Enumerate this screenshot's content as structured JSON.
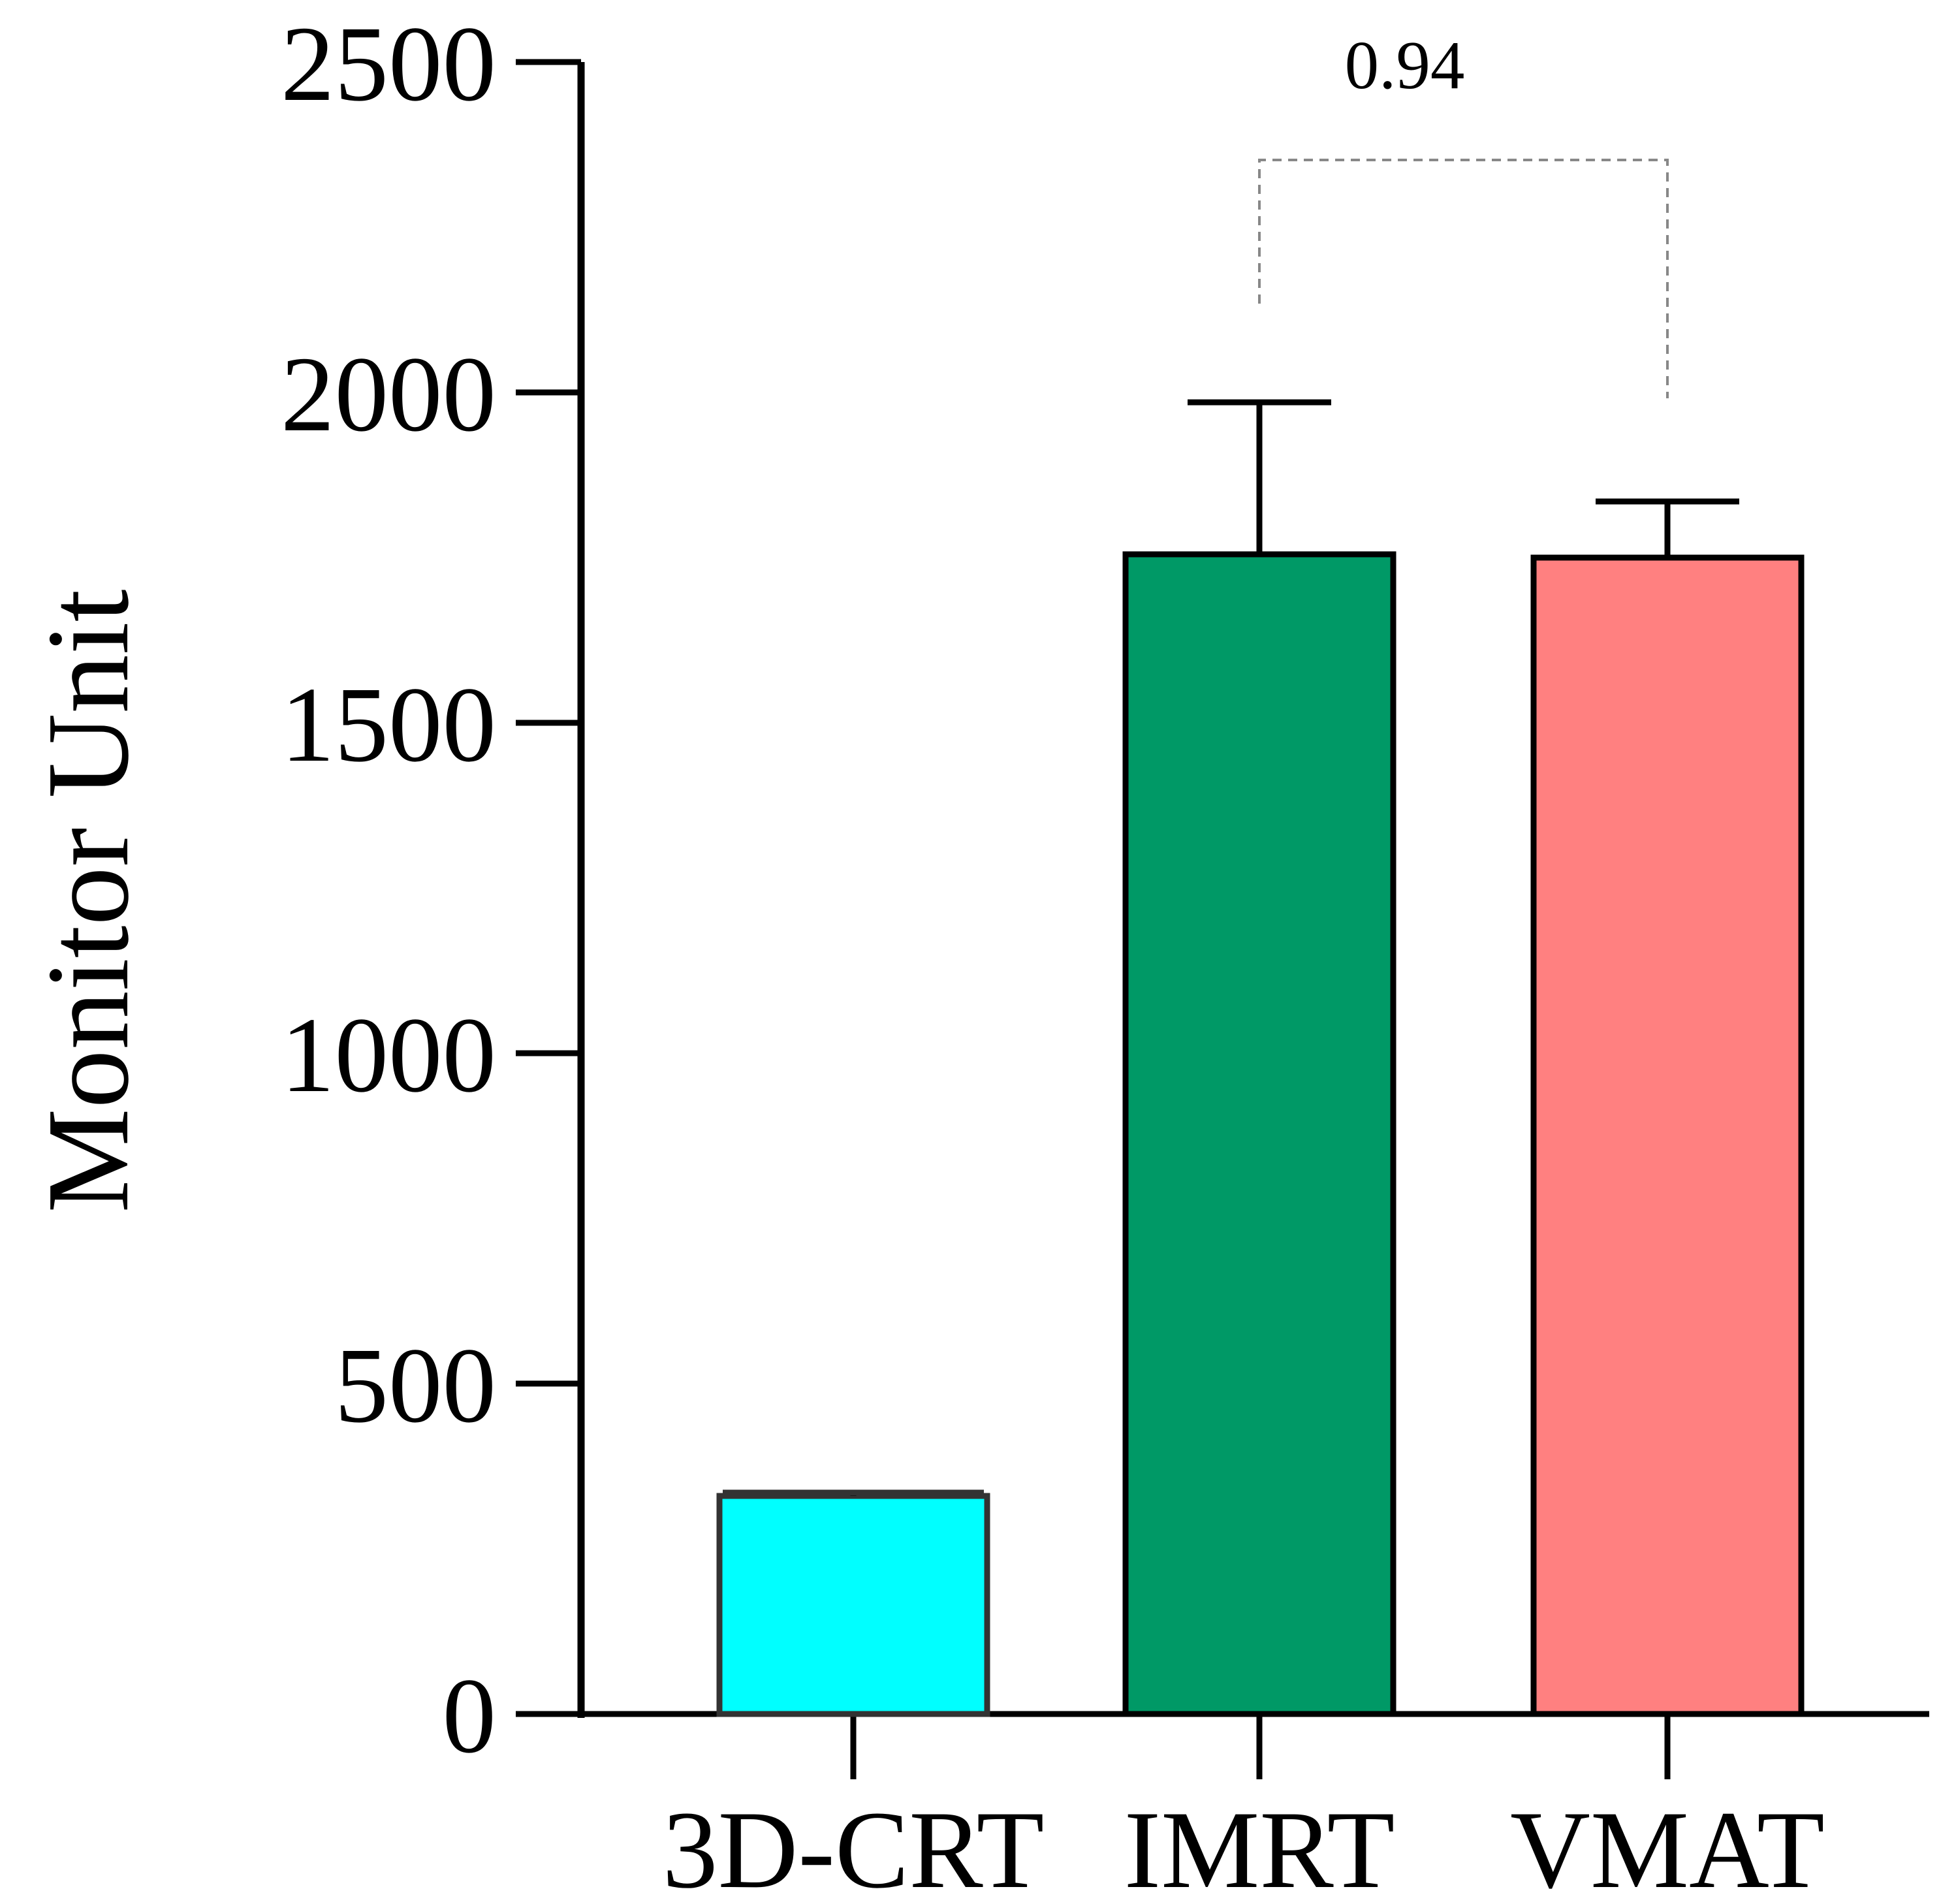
{
  "chart_data": {
    "type": "bar",
    "title": "",
    "xlabel": "",
    "ylabel": "Monitor Unit",
    "ylim": [
      0,
      2500
    ],
    "yticks": [
      "0",
      "500",
      "1000",
      "1500",
      "2000",
      "2500"
    ],
    "yticks_values": [
      0,
      500,
      1000,
      1500,
      2000,
      2500
    ],
    "categories": [
      "3D-CRT",
      "IMRT",
      "VMAT"
    ],
    "values": [
      330,
      1755,
      1750
    ],
    "errors": [
      5,
      230,
      85
    ],
    "colors": [
      "#00ffff",
      "#009966",
      "#ff8080"
    ],
    "edge_colors": [
      "#333333",
      "#000000",
      "#000000"
    ],
    "grid": false,
    "legend": "none",
    "annotations": [
      {
        "label": "0.94",
        "between": [
          "IMRT",
          "VMAT"
        ],
        "style": "dashed-bracket"
      }
    ]
  }
}
